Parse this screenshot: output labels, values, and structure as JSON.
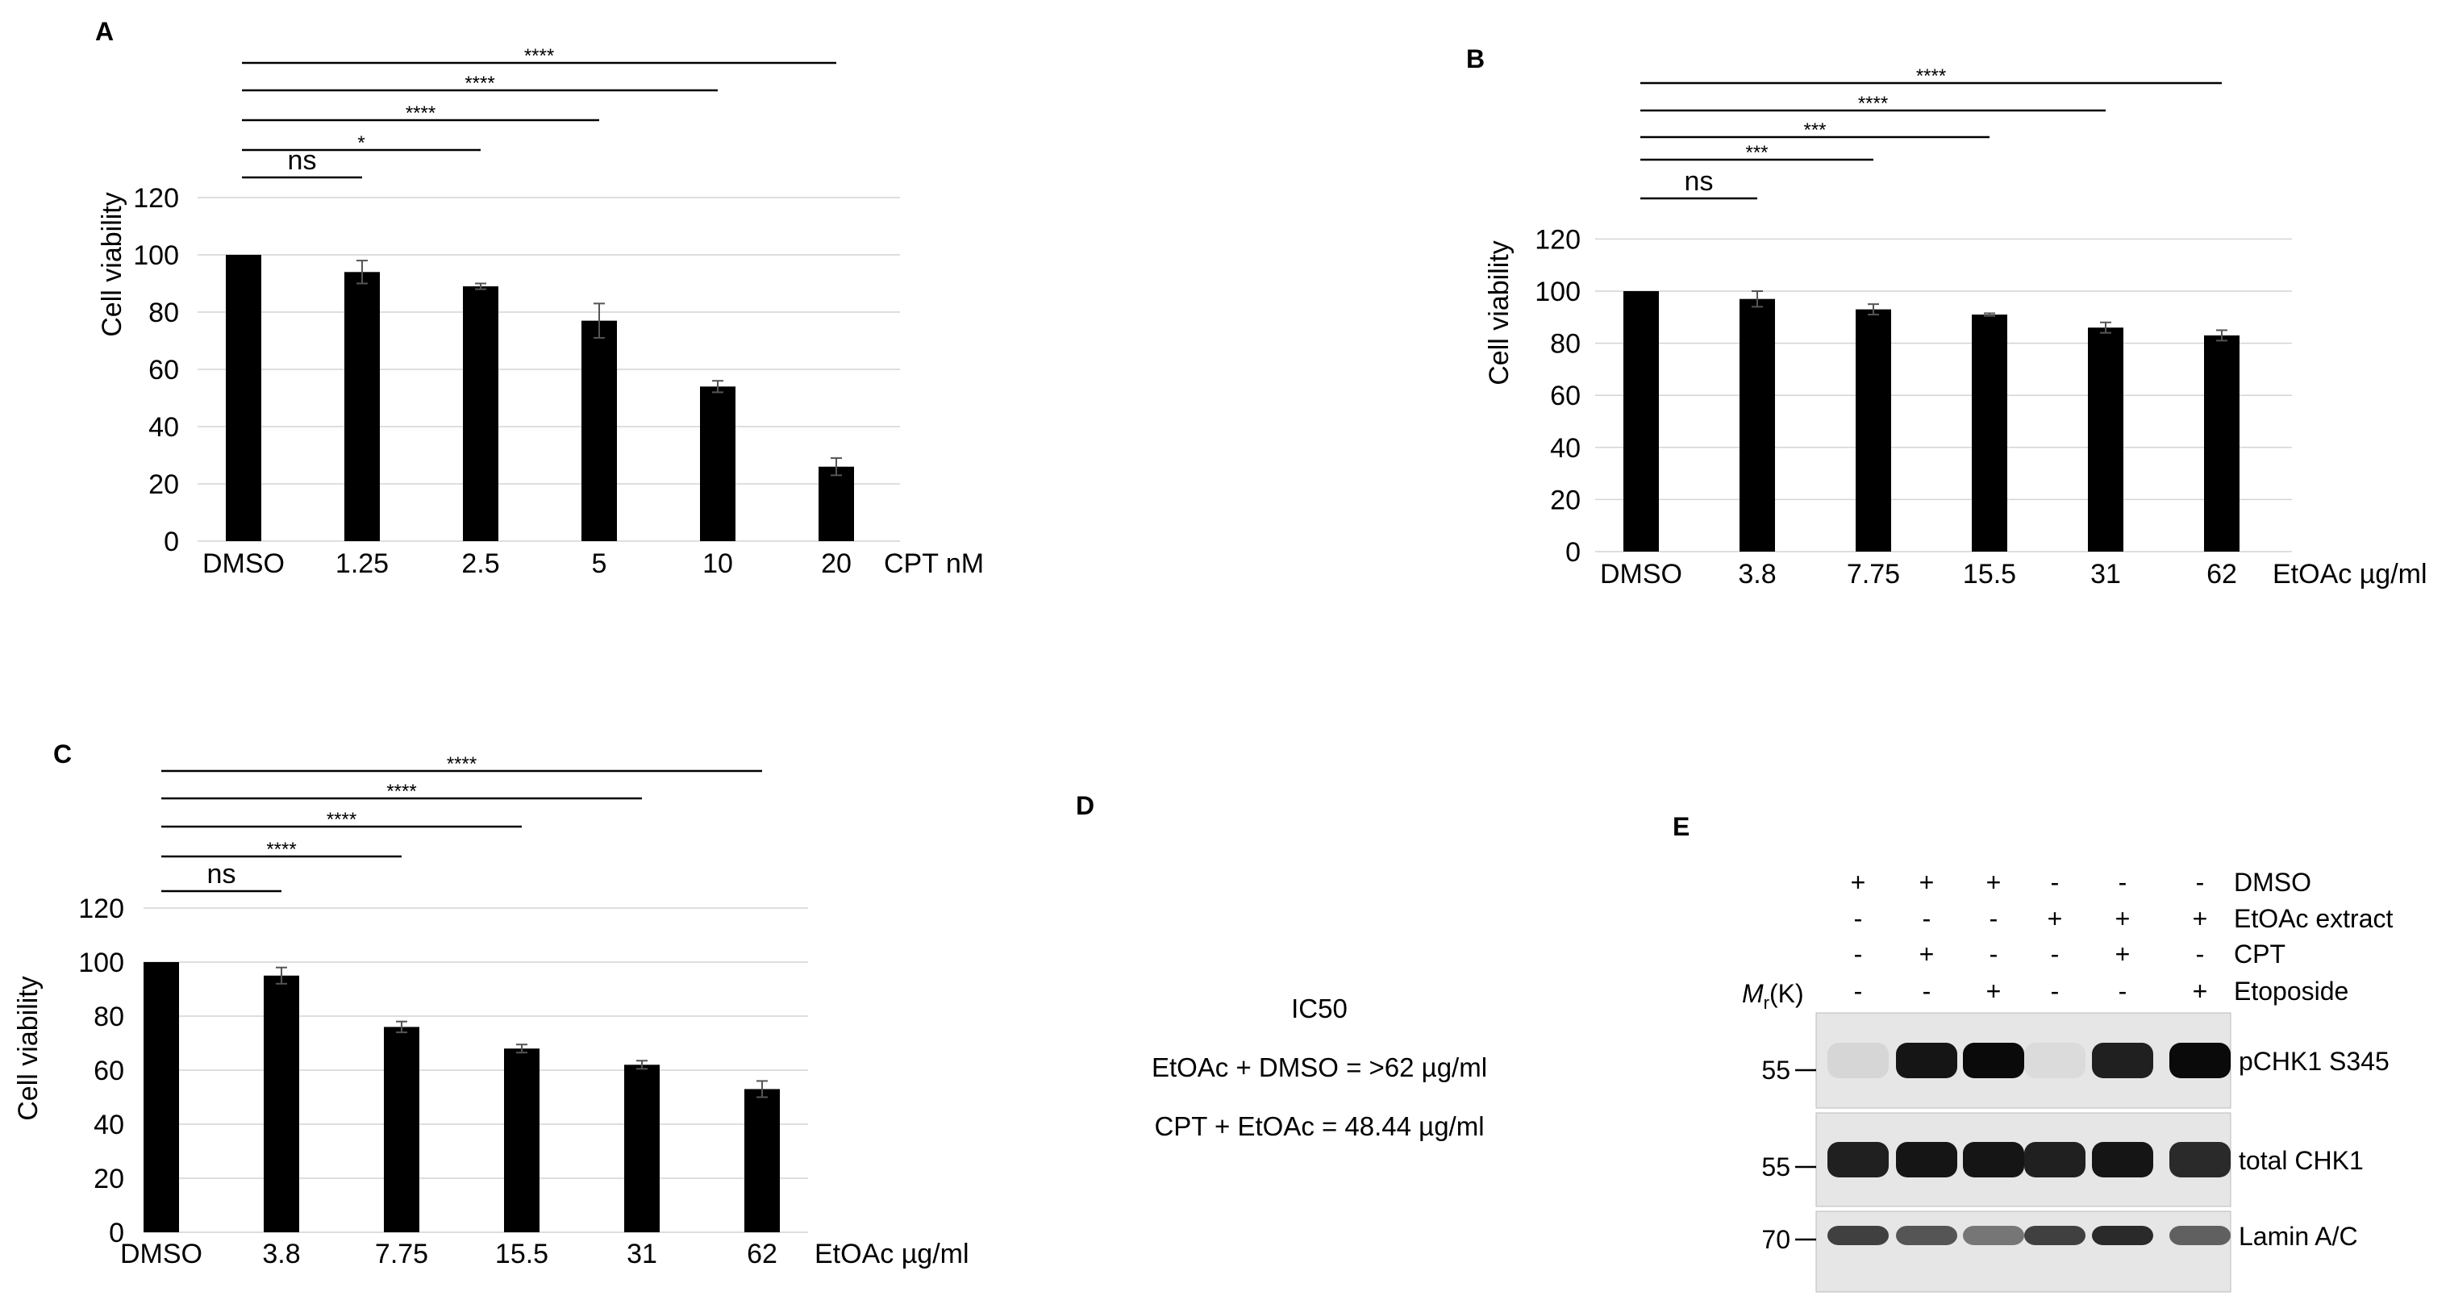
{
  "chart_data": [
    {
      "panel": "A",
      "type": "bar",
      "categories": [
        "DMSO",
        "1.25",
        "2.5",
        "5",
        "10",
        "20"
      ],
      "values": [
        100,
        94,
        89,
        77,
        54,
        26
      ],
      "errors": [
        0,
        4,
        1,
        6,
        2,
        3
      ],
      "xlabel": "CPT nM",
      "ylabel": "Cell viability",
      "ylim": [
        0,
        120
      ],
      "yticks": [
        "0",
        "20",
        "40",
        "60",
        "80",
        "100",
        "120"
      ],
      "grid": true,
      "significance": [
        {
          "to": 1,
          "label": "ns"
        },
        {
          "to": 2,
          "label": "*"
        },
        {
          "to": 3,
          "label": "****"
        },
        {
          "to": 4,
          "label": "****"
        },
        {
          "to": 5,
          "label": "****"
        }
      ]
    },
    {
      "panel": "B",
      "type": "bar",
      "categories": [
        "DMSO",
        "3.8",
        "7.75",
        "15.5",
        "31",
        "62"
      ],
      "values": [
        100,
        97,
        93,
        91,
        86,
        83
      ],
      "errors": [
        0,
        3,
        2,
        0.5,
        2,
        2
      ],
      "xlabel": "EtOAc µg/ml",
      "ylabel": "Cell viability",
      "ylim": [
        0,
        120
      ],
      "yticks": [
        "0",
        "20",
        "40",
        "60",
        "80",
        "100",
        "120"
      ],
      "grid": true,
      "significance": [
        {
          "to": 1,
          "label": "ns"
        },
        {
          "to": 2,
          "label": "***"
        },
        {
          "to": 3,
          "label": "***"
        },
        {
          "to": 4,
          "label": "****"
        },
        {
          "to": 5,
          "label": "****"
        }
      ]
    },
    {
      "panel": "C",
      "type": "bar",
      "categories": [
        "DMSO",
        "3.8",
        "7.75",
        "15.5",
        "31",
        "62"
      ],
      "values": [
        100,
        95,
        76,
        68,
        62,
        53
      ],
      "errors": [
        0,
        3,
        2,
        1.5,
        1.5,
        3
      ],
      "xlabel": "EtOAc µg/ml",
      "ylabel": "Cell viability",
      "ylim": [
        0,
        120
      ],
      "yticks": [
        "0",
        "20",
        "40",
        "60",
        "80",
        "100",
        "120"
      ],
      "grid": true,
      "significance": [
        {
          "to": 1,
          "label": "ns"
        },
        {
          "to": 2,
          "label": "****"
        },
        {
          "to": 3,
          "label": "****"
        },
        {
          "to": 4,
          "label": "****"
        },
        {
          "to": 5,
          "label": "****"
        }
      ]
    }
  ],
  "panel_d": {
    "letter": "D",
    "title": "IC50",
    "line1": "EtOAc + DMSO  = >62 µg/ml",
    "line2": "CPT + EtOAc = 48.44 µg/ml"
  },
  "panel_e": {
    "letter": "E",
    "mr_label_prefix": "M",
    "mr_label_sub": "r",
    "mr_label_suffix": "(K)",
    "treatments": [
      {
        "name": "DMSO",
        "signs": [
          "+",
          "+",
          "+",
          "-",
          "-",
          "-"
        ]
      },
      {
        "name": "EtOAc extract",
        "signs": [
          "-",
          "-",
          "-",
          "+",
          "+",
          "+"
        ]
      },
      {
        "name": "CPT",
        "signs": [
          "-",
          "+",
          "-",
          "-",
          "+",
          "-"
        ]
      },
      {
        "name": "Etoposide",
        "signs": [
          "-",
          "-",
          "+",
          "-",
          "-",
          "+"
        ]
      }
    ],
    "blots": [
      {
        "name": "pCHK1 S345",
        "marker": "55",
        "intensity": [
          0.05,
          0.95,
          1.0,
          0.03,
          0.9,
          1.0
        ]
      },
      {
        "name": "total CHK1",
        "marker": "55",
        "intensity": [
          0.9,
          0.95,
          0.95,
          0.9,
          0.95,
          0.85
        ]
      },
      {
        "name": "Lamin A/C",
        "marker": "70",
        "intensity": [
          0.75,
          0.65,
          0.5,
          0.75,
          0.85,
          0.6
        ]
      }
    ]
  }
}
